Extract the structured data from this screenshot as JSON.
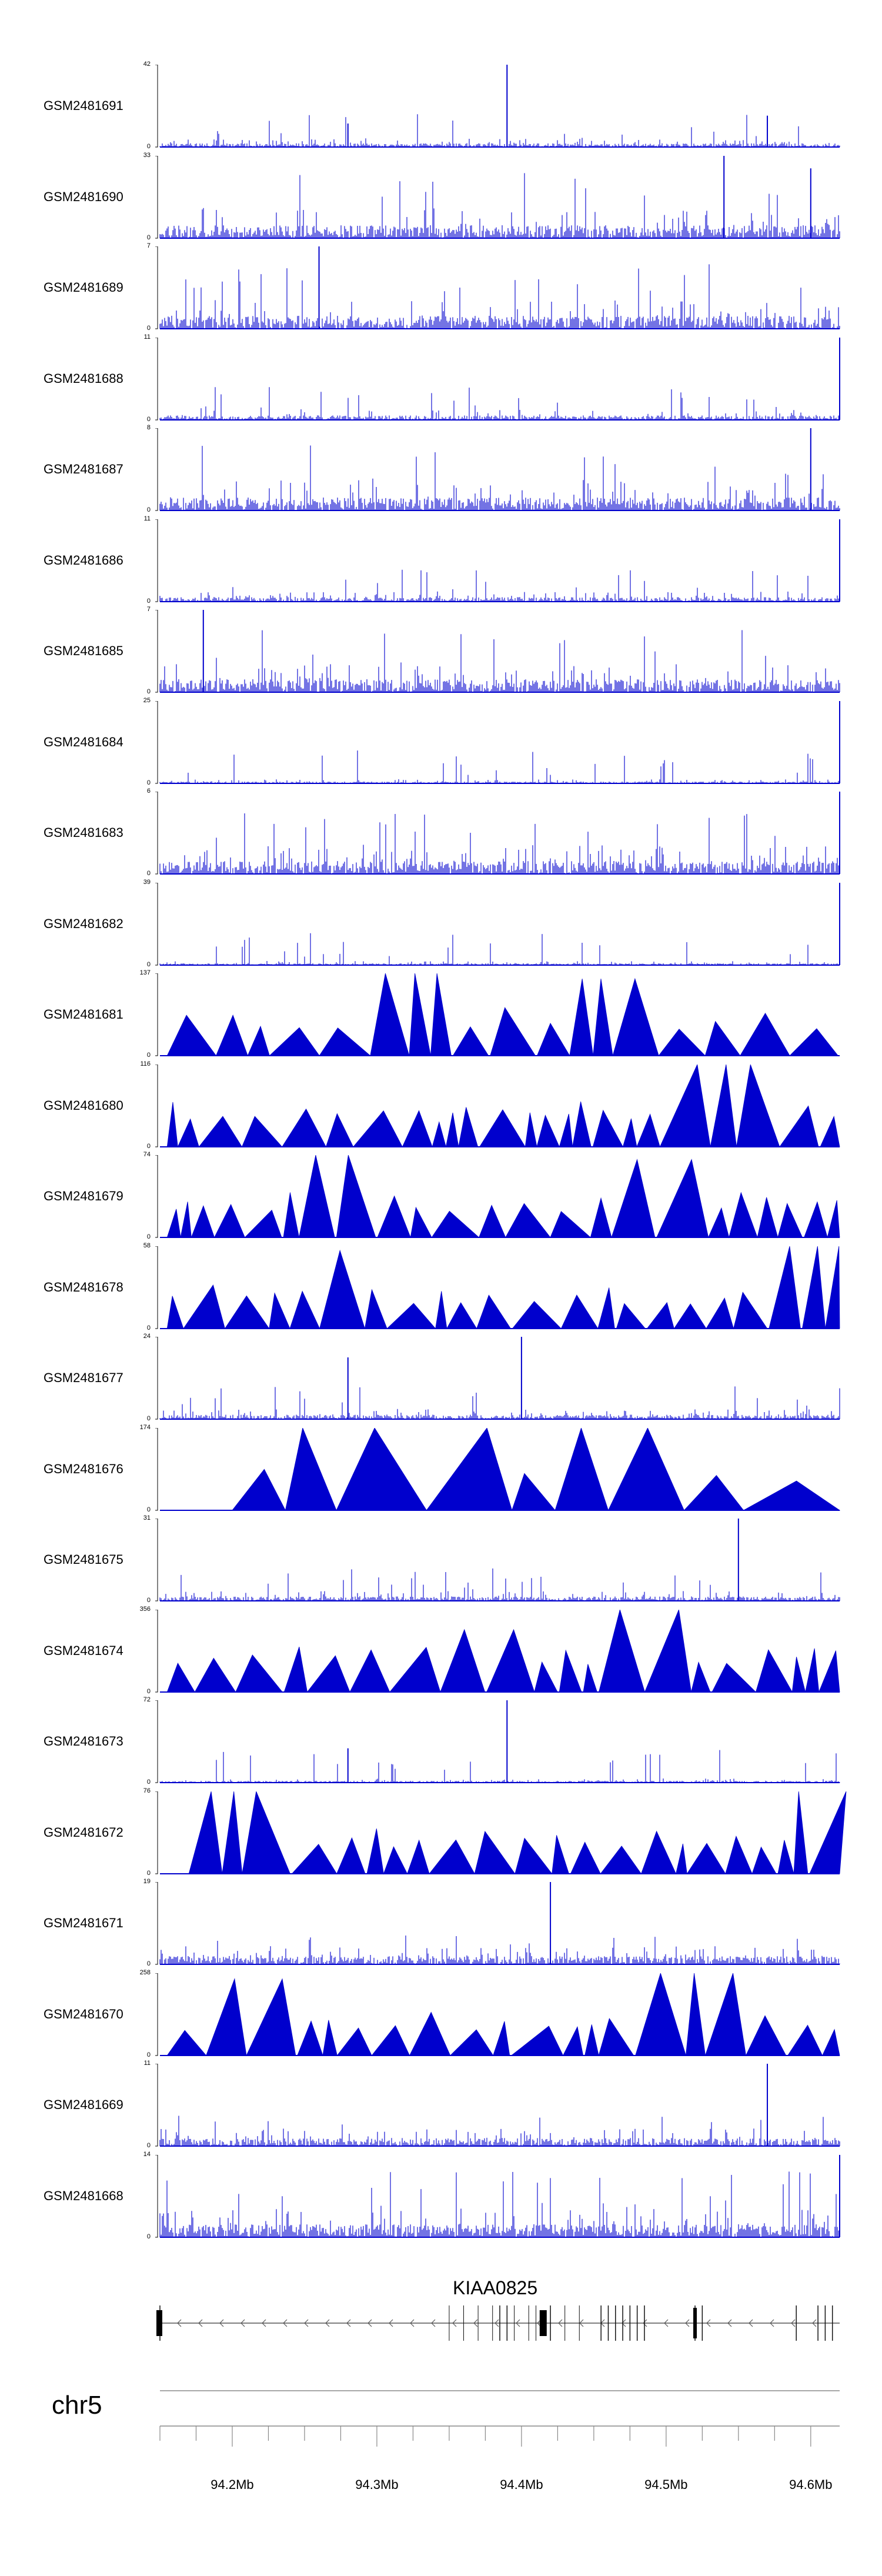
{
  "chart_data": {
    "type": "area",
    "chromosome": "chr5",
    "gene": "KIAA0825",
    "x_axis": {
      "range_mb": [
        94.15,
        94.62
      ],
      "tick_labels": [
        "94.2Mb",
        "94.3Mb",
        "94.4Mb",
        "94.5Mb",
        "94.6Mb"
      ],
      "tick_values_mb": [
        94.2,
        94.3,
        94.4,
        94.5,
        94.6
      ]
    },
    "track_color": "#0000CD",
    "tracks": [
      {
        "name": "GSM2481691",
        "ymax": 42,
        "style": "bars",
        "density": "sparse-low",
        "peaks_mb": [
          [
            94.39,
            42
          ],
          [
            94.57,
            16
          ],
          [
            94.28,
            12
          ]
        ]
      },
      {
        "name": "GSM2481690",
        "ymax": 33,
        "style": "bars",
        "density": "dense",
        "peaks_mb": [
          [
            94.54,
            33
          ],
          [
            94.6,
            28
          ]
        ]
      },
      {
        "name": "GSM2481689",
        "ymax": 7,
        "style": "bars",
        "density": "dense",
        "peaks_mb": [
          [
            94.26,
            7
          ]
        ]
      },
      {
        "name": "GSM2481688",
        "ymax": 11,
        "style": "bars",
        "density": "low",
        "peaks_mb": [
          [
            94.62,
            11
          ]
        ]
      },
      {
        "name": "GSM2481687",
        "ymax": 8,
        "style": "bars",
        "density": "dense",
        "peaks_mb": [
          [
            94.6,
            8
          ]
        ]
      },
      {
        "name": "GSM2481686",
        "ymax": 11,
        "style": "bars",
        "density": "low",
        "peaks_mb": [
          [
            94.62,
            11
          ]
        ]
      },
      {
        "name": "GSM2481685",
        "ymax": 7,
        "style": "bars",
        "density": "dense",
        "peaks_mb": [
          [
            94.18,
            7
          ]
        ]
      },
      {
        "name": "GSM2481684",
        "ymax": 25,
        "style": "bars",
        "density": "very-low",
        "peaks_mb": [
          [
            94.62,
            25
          ]
        ]
      },
      {
        "name": "GSM2481683",
        "ymax": 6,
        "style": "bars",
        "density": "dense",
        "peaks_mb": [
          [
            94.62,
            6
          ]
        ]
      },
      {
        "name": "GSM2481682",
        "ymax": 39,
        "style": "bars",
        "density": "very-low",
        "peaks_mb": [
          [
            94.62,
            39
          ]
        ]
      },
      {
        "name": "GSM2481681",
        "ymax": 137,
        "style": "triangles",
        "peaks_mb": [
          [
            94.33,
            137
          ],
          [
            94.45,
            128
          ],
          [
            94.39,
            80
          ]
        ]
      },
      {
        "name": "GSM2481680",
        "ymax": 116,
        "style": "triangles",
        "peaks_mb": [
          [
            94.53,
            116
          ]
        ]
      },
      {
        "name": "GSM2481679",
        "ymax": 74,
        "style": "triangles",
        "peaks_mb": [
          [
            94.28,
            74
          ],
          [
            94.5,
            70
          ]
        ]
      },
      {
        "name": "GSM2481678",
        "ymax": 58,
        "style": "triangles",
        "peaks_mb": [
          [
            94.6,
            58
          ],
          [
            94.27,
            55
          ]
        ]
      },
      {
        "name": "GSM2481677",
        "ymax": 24,
        "style": "bars",
        "density": "low",
        "peaks_mb": [
          [
            94.4,
            24
          ],
          [
            94.28,
            18
          ]
        ]
      },
      {
        "name": "GSM2481676",
        "ymax": 174,
        "style": "triangles",
        "peaks_mb": [
          [
            94.26,
            174
          ],
          [
            94.27,
            174
          ],
          [
            94.35,
            174
          ],
          [
            94.45,
            174
          ]
        ]
      },
      {
        "name": "GSM2481675",
        "ymax": 31,
        "style": "bars",
        "density": "low",
        "peaks_mb": [
          [
            94.55,
            31
          ]
        ]
      },
      {
        "name": "GSM2481674",
        "ymax": 356,
        "style": "triangles",
        "peaks_mb": [
          [
            94.49,
            356
          ],
          [
            94.38,
            270
          ]
        ]
      },
      {
        "name": "GSM2481673",
        "ymax": 72,
        "style": "bars",
        "density": "very-low",
        "peaks_mb": [
          [
            94.39,
            72
          ],
          [
            94.28,
            30
          ]
        ]
      },
      {
        "name": "GSM2481672",
        "ymax": 76,
        "style": "triangles",
        "peaks_mb": [
          [
            94.19,
            76
          ],
          [
            94.6,
            76
          ]
        ]
      },
      {
        "name": "GSM2481671",
        "ymax": 19,
        "style": "bars",
        "density": "medium",
        "peaks_mb": [
          [
            94.42,
            19
          ]
        ]
      },
      {
        "name": "GSM2481670",
        "ymax": 258,
        "style": "triangles",
        "peaks_mb": [
          [
            94.52,
            258
          ],
          [
            94.21,
            240
          ]
        ]
      },
      {
        "name": "GSM2481669",
        "ymax": 11,
        "style": "bars",
        "density": "medium",
        "peaks_mb": [
          [
            94.57,
            11
          ]
        ]
      },
      {
        "name": "GSM2481668",
        "ymax": 14,
        "style": "bars",
        "density": "dense",
        "peaks_mb": [
          [
            94.62,
            14
          ]
        ]
      }
    ]
  }
}
